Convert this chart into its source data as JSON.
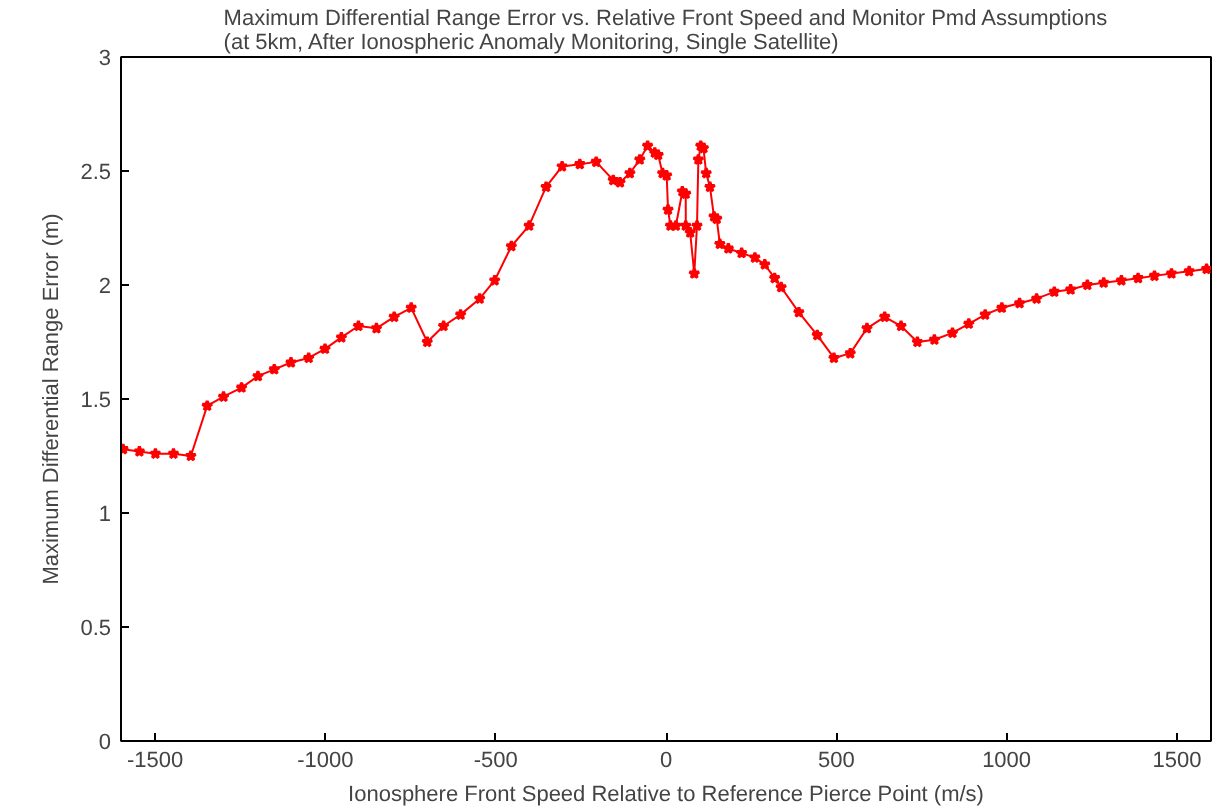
{
  "chart_data": {
    "type": "line",
    "title": "Maximum Differential Range Error vs. Relative Front Speed and Monitor Pmd Assumptions\n(at 5km, After Ionospheric Anomaly Monitoring, Single Satellite)",
    "xlabel": "Ionosphere Front Speed Relative to Reference Pierce Point (m/s)",
    "ylabel": "Maximum Differential Range Error (m)",
    "x": [
      -1594,
      -1546,
      -1499,
      -1446,
      -1395,
      -1347,
      -1299,
      -1246,
      -1198,
      -1150,
      -1101,
      -1049,
      -1001,
      -953,
      -903,
      -850,
      -798,
      -748,
      -701,
      -653,
      -603,
      -547,
      -503,
      -454,
      -402,
      -352,
      -305,
      -253,
      -205,
      -155,
      -135,
      -106,
      -77,
      -54,
      -33,
      -23,
      -10,
      2,
      6,
      13,
      29,
      48,
      58,
      58,
      71,
      83,
      91,
      95,
      102,
      110,
      118,
      129,
      141,
      149,
      158,
      183,
      222,
      261,
      290,
      319,
      338,
      390,
      444,
      493,
      541,
      590,
      642,
      690,
      738,
      788,
      841,
      889,
      937,
      986,
      1038,
      1088,
      1140,
      1188,
      1237,
      1285,
      1337,
      1386,
      1434,
      1484,
      1536,
      1587
    ],
    "series": [
      {
        "color": "#ff0000",
        "values": [
          1.28,
          1.27,
          1.26,
          1.26,
          1.25,
          1.47,
          1.51,
          1.55,
          1.6,
          1.63,
          1.66,
          1.68,
          1.72,
          1.77,
          1.82,
          1.81,
          1.86,
          1.9,
          1.75,
          1.82,
          1.87,
          1.94,
          2.02,
          2.17,
          2.26,
          2.43,
          2.52,
          2.53,
          2.54,
          2.46,
          2.45,
          2.49,
          2.55,
          2.61,
          2.58,
          2.57,
          2.49,
          2.48,
          2.33,
          2.26,
          2.26,
          2.41,
          2.4,
          2.26,
          2.23,
          2.05,
          2.26,
          2.55,
          2.61,
          2.6,
          2.49,
          2.43,
          2.3,
          2.29,
          2.18,
          2.16,
          2.14,
          2.12,
          2.09,
          2.03,
          1.99,
          1.88,
          1.78,
          1.68,
          1.7,
          1.81,
          1.86,
          1.82,
          1.75,
          1.76,
          1.79,
          1.83,
          1.87,
          1.9,
          1.92,
          1.94,
          1.97,
          1.98,
          2.0,
          2.01,
          2.02,
          2.03,
          2.04,
          2.05,
          2.06,
          2.07
        ]
      }
    ],
    "xlim": [
      -1600,
      1600
    ],
    "xticks": [
      -1500,
      -1000,
      -500,
      0,
      500,
      1000,
      1500
    ],
    "ylim": [
      0,
      3
    ],
    "yticks": [
      0,
      0.5,
      1,
      1.5,
      2,
      2.5,
      3
    ],
    "grid": false,
    "marker": "star",
    "line_style": "solid"
  }
}
